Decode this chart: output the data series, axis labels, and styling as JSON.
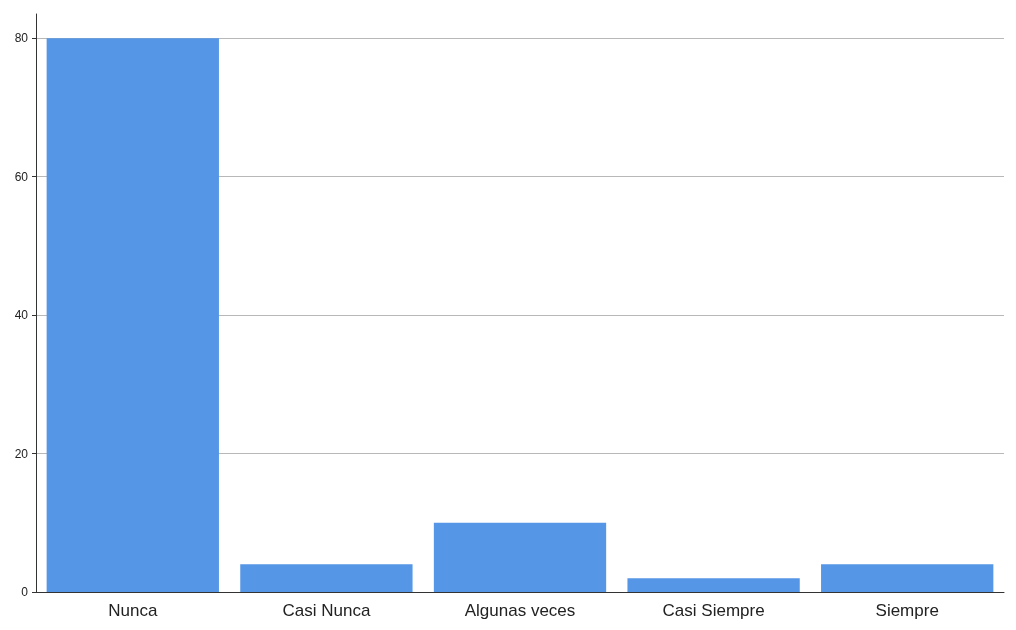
{
  "chart_data": {
    "type": "bar",
    "categories": [
      "Nunca",
      "Casi Nunca",
      "Algunas veces",
      "Casi Siempre",
      "Siempre"
    ],
    "values": [
      80,
      4,
      10,
      2,
      4
    ],
    "color": "#5596e6",
    "ylim": [
      0,
      83.5
    ],
    "yticks": [
      0,
      20,
      40,
      60,
      80
    ],
    "grid": "y"
  }
}
